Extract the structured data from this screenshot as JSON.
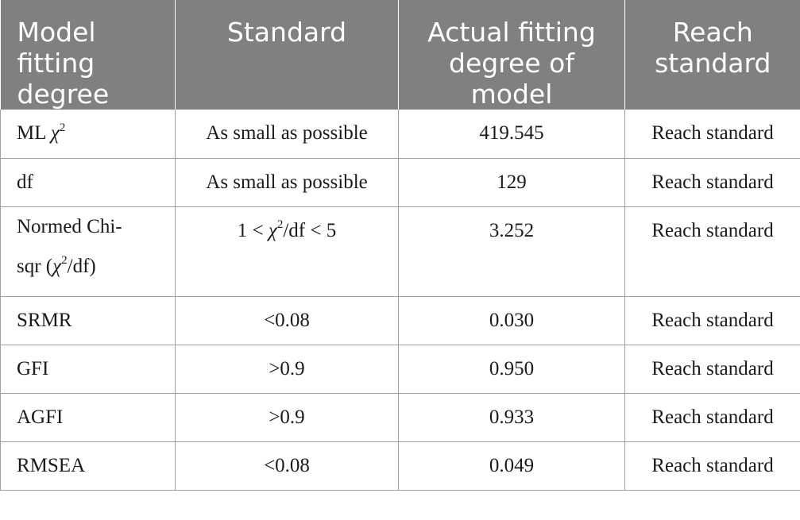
{
  "table": {
    "headers": [
      "Model fitting degree",
      "Standard",
      "Actual fitting degree of model",
      "Reach standard"
    ],
    "rows": [
      {
        "metric": "ML",
        "metric_symbol": "χ",
        "metric_sup": "2",
        "standard": "As small as possible",
        "actual": "419.545",
        "result": "Reach standard"
      },
      {
        "metric": "df",
        "standard": "As small as possible",
        "actual": "129",
        "result": "Reach standard"
      },
      {
        "metric_line1": "Normed Chi-",
        "metric_line2_pre": "sqr (",
        "metric_symbol": "χ",
        "metric_sup": "2",
        "metric_line2_post": "/df)",
        "standard_pre": "1 < ",
        "standard_symbol": "χ",
        "standard_sup": "2",
        "standard_post": "/df < 5",
        "actual": "3.252",
        "result": "Reach standard"
      },
      {
        "metric": "SRMR",
        "standard": "<0.08",
        "actual": "0.030",
        "result": "Reach standard"
      },
      {
        "metric": "GFI",
        "standard": ">0.9",
        "actual": "0.950",
        "result": "Reach standard"
      },
      {
        "metric": "AGFI",
        "standard": ">0.9",
        "actual": "0.933",
        "result": "Reach standard"
      },
      {
        "metric": "RMSEA",
        "standard": "<0.08",
        "actual": "0.049",
        "result": "Reach standard"
      }
    ]
  },
  "colors": {
    "header_bg": "#808080",
    "header_text": "#ffffff",
    "grid": "#a0a0a0",
    "body_text": "#1a1a1a"
  }
}
